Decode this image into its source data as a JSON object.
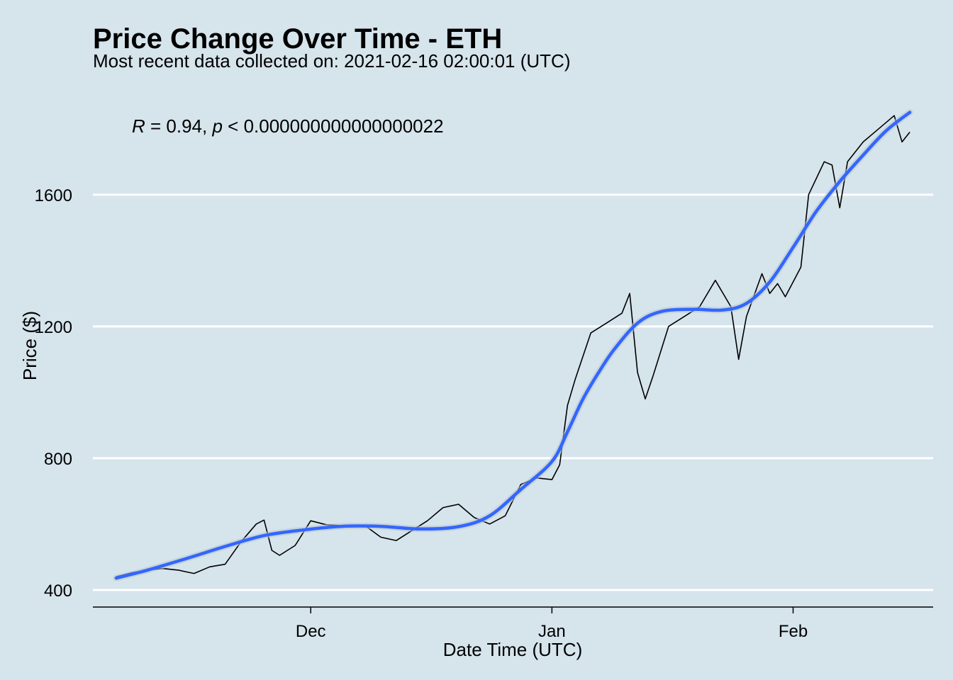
{
  "chart_data": {
    "type": "line",
    "title": "Price Change Over Time - ETH",
    "subtitle": "Most recent data collected on: 2021-02-16 02:00:01 (UTC)",
    "xlabel": "Date Time (UTC)",
    "ylabel": "Price ($)",
    "annotation": {
      "r_symbol": "R",
      "r_text": " = 0.94, ",
      "p_symbol": "p",
      "p_text": " < 0.000000000000000022"
    },
    "x_ticks": [
      {
        "label": "Dec",
        "date": "2020-12-01"
      },
      {
        "label": "Jan",
        "date": "2021-01-01"
      },
      {
        "label": "Feb",
        "date": "2021-02-01"
      }
    ],
    "y_ticks": [
      400,
      800,
      1200,
      1600
    ],
    "xlim": [
      "2020-11-03",
      "2021-02-19"
    ],
    "ylim": [
      348,
      1890
    ],
    "grid": {
      "horizontal": true,
      "vertical": false
    },
    "colors": {
      "background": "#d6e4ec",
      "price_line": "#000000",
      "smooth_line": "#3366ff",
      "grid": "#ffffff"
    },
    "series": [
      {
        "style": "price",
        "points": [
          [
            "2020-11-06",
            440
          ],
          [
            "2020-11-08",
            452
          ],
          [
            "2020-11-10",
            460
          ],
          [
            "2020-11-12",
            465
          ],
          [
            "2020-11-14",
            460
          ],
          [
            "2020-11-16",
            450
          ],
          [
            "2020-11-18",
            470
          ],
          [
            "2020-11-20",
            478
          ],
          [
            "2020-11-22",
            545
          ],
          [
            "2020-11-24",
            600
          ],
          [
            "2020-11-25",
            612
          ],
          [
            "2020-11-26",
            520
          ],
          [
            "2020-11-27",
            505
          ],
          [
            "2020-11-29",
            535
          ],
          [
            "2020-12-01",
            610
          ],
          [
            "2020-12-03",
            598
          ],
          [
            "2020-12-05",
            595
          ],
          [
            "2020-12-08",
            595
          ],
          [
            "2020-12-10",
            560
          ],
          [
            "2020-12-12",
            550
          ],
          [
            "2020-12-14",
            580
          ],
          [
            "2020-12-16",
            610
          ],
          [
            "2020-12-18",
            650
          ],
          [
            "2020-12-20",
            660
          ],
          [
            "2020-12-22",
            620
          ],
          [
            "2020-12-24",
            600
          ],
          [
            "2020-12-26",
            625
          ],
          [
            "2020-12-28",
            720
          ],
          [
            "2020-12-30",
            740
          ],
          [
            "2021-01-01",
            735
          ],
          [
            "2021-01-02",
            780
          ],
          [
            "2021-01-03",
            960
          ],
          [
            "2021-01-04",
            1040
          ],
          [
            "2021-01-06",
            1180
          ],
          [
            "2021-01-08",
            1210
          ],
          [
            "2021-01-10",
            1240
          ],
          [
            "2021-01-11",
            1300
          ],
          [
            "2021-01-12",
            1060
          ],
          [
            "2021-01-13",
            980
          ],
          [
            "2021-01-14",
            1050
          ],
          [
            "2021-01-16",
            1200
          ],
          [
            "2021-01-18",
            1230
          ],
          [
            "2021-01-20",
            1260
          ],
          [
            "2021-01-22",
            1340
          ],
          [
            "2021-01-24",
            1260
          ],
          [
            "2021-01-25",
            1100
          ],
          [
            "2021-01-26",
            1230
          ],
          [
            "2021-01-28",
            1360
          ],
          [
            "2021-01-29",
            1300
          ],
          [
            "2021-01-30",
            1330
          ],
          [
            "2021-01-31",
            1290
          ],
          [
            "2021-02-02",
            1380
          ],
          [
            "2021-02-03",
            1600
          ],
          [
            "2021-02-04",
            1650
          ],
          [
            "2021-02-05",
            1700
          ],
          [
            "2021-02-06",
            1690
          ],
          [
            "2021-02-07",
            1560
          ],
          [
            "2021-02-08",
            1700
          ],
          [
            "2021-02-10",
            1760
          ],
          [
            "2021-02-12",
            1800
          ],
          [
            "2021-02-14",
            1840
          ],
          [
            "2021-02-15",
            1760
          ],
          [
            "2021-02-16",
            1790
          ]
        ]
      },
      {
        "style": "smooth",
        "points": [
          [
            "2020-11-06",
            436
          ],
          [
            "2020-11-10",
            460
          ],
          [
            "2020-11-15",
            495
          ],
          [
            "2020-11-20",
            532
          ],
          [
            "2020-11-25",
            565
          ],
          [
            "2020-11-30",
            582
          ],
          [
            "2020-12-05",
            593
          ],
          [
            "2020-12-10",
            593
          ],
          [
            "2020-12-15",
            585
          ],
          [
            "2020-12-20",
            592
          ],
          [
            "2020-12-24",
            625
          ],
          [
            "2020-12-28",
            705
          ],
          [
            "2021-01-01",
            790
          ],
          [
            "2021-01-03",
            880
          ],
          [
            "2021-01-05",
            980
          ],
          [
            "2021-01-07",
            1060
          ],
          [
            "2021-01-09",
            1130
          ],
          [
            "2021-01-12",
            1210
          ],
          [
            "2021-01-15",
            1245
          ],
          [
            "2021-01-19",
            1252
          ],
          [
            "2021-01-23",
            1250
          ],
          [
            "2021-01-26",
            1270
          ],
          [
            "2021-01-29",
            1335
          ],
          [
            "2021-02-01",
            1440
          ],
          [
            "2021-02-04",
            1550
          ],
          [
            "2021-02-07",
            1640
          ],
          [
            "2021-02-10",
            1720
          ],
          [
            "2021-02-13",
            1795
          ],
          [
            "2021-02-16",
            1850
          ]
        ]
      }
    ]
  }
}
